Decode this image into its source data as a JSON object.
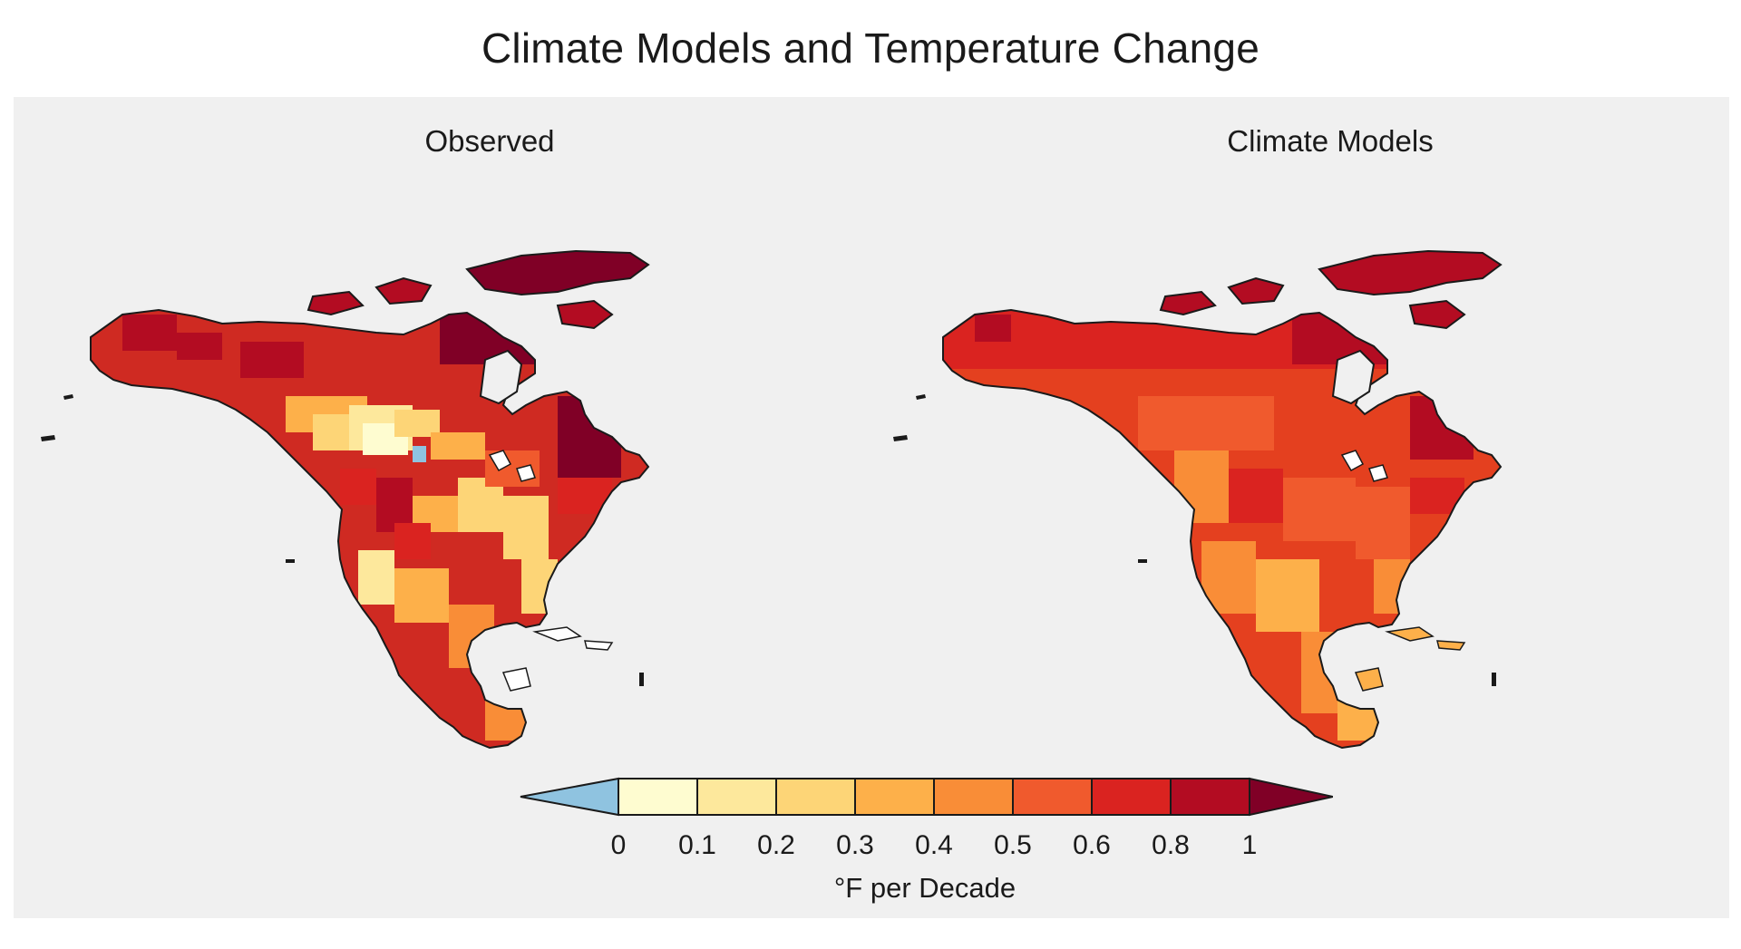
{
  "figure": {
    "title": "Climate Models and Temperature Change",
    "panels": [
      {
        "id": "observed",
        "title": "Observed"
      },
      {
        "id": "models",
        "title": "Climate Models"
      }
    ]
  },
  "legend": {
    "label": "°F per Decade",
    "ticks": [
      "0",
      "0.1",
      "0.2",
      "0.3",
      "0.4",
      "0.5",
      "0.6",
      "0.8",
      "1"
    ],
    "colors": [
      "#fefcd0",
      "#fde89c",
      "#fdd577",
      "#fdb04a",
      "#f98d37",
      "#f05a2d",
      "#da2320",
      "#b30c22"
    ],
    "under_color": "#8fc3e0",
    "over_color": "#800026"
  },
  "map_colors": {
    "land_base_observed": "#cf2a22",
    "land_base_models": "#e4401f",
    "coastline": "#1a1a1a",
    "water": "#ffffff"
  }
}
